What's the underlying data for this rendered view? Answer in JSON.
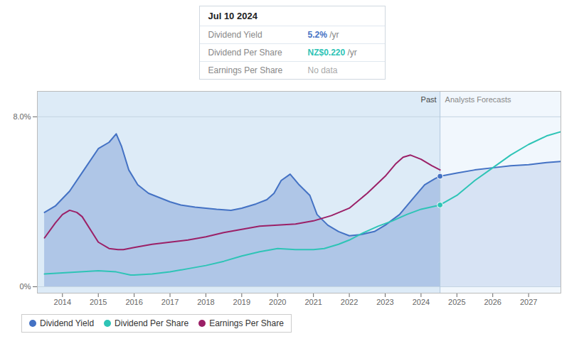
{
  "chart_data": {
    "type": "line",
    "xlim": [
      2013.3,
      2027.9
    ],
    "ylim": [
      -0.3,
      9.2
    ],
    "xticks": [
      2014,
      2015,
      2016,
      2017,
      2018,
      2019,
      2020,
      2021,
      2022,
      2023,
      2024,
      2025,
      2026,
      2027
    ],
    "yticks": [
      {
        "value": 0,
        "label": "0%"
      },
      {
        "value": 8.0,
        "label": "8.0%"
      }
    ],
    "grid": true,
    "legend": "lower left",
    "regions": [
      {
        "label": "Past",
        "from": 2013.3,
        "to": 2024.53,
        "color": "#cfe2f3"
      },
      {
        "label": "Analysts Forecasts",
        "from": 2024.53,
        "to": 2027.9,
        "color": "#e8f2fb"
      }
    ],
    "series": [
      {
        "name": "Dividend Yield",
        "color": "#4472c4",
        "type": "area",
        "x": [
          2013.5,
          2013.8,
          2014.2,
          2014.6,
          2015.0,
          2015.3,
          2015.5,
          2015.65,
          2015.85,
          2016.1,
          2016.4,
          2016.7,
          2017.0,
          2017.3,
          2017.7,
          2018.0,
          2018.3,
          2018.7,
          2019.0,
          2019.4,
          2019.7,
          2019.9,
          2020.1,
          2020.35,
          2020.6,
          2020.9,
          2021.1,
          2021.4,
          2021.7,
          2022.0,
          2022.3,
          2022.7,
          2023.0,
          2023.4,
          2023.8,
          2024.1,
          2024.4,
          2024.53
        ],
        "values": [
          3.5,
          3.8,
          4.5,
          5.5,
          6.5,
          6.8,
          7.2,
          6.6,
          5.5,
          4.8,
          4.4,
          4.2,
          4.0,
          3.85,
          3.75,
          3.7,
          3.65,
          3.6,
          3.7,
          3.9,
          4.1,
          4.4,
          5.0,
          5.3,
          4.8,
          4.3,
          3.4,
          2.9,
          2.6,
          2.4,
          2.45,
          2.6,
          2.9,
          3.4,
          4.2,
          4.8,
          5.1,
          5.2
        ],
        "forecast_x": [
          2024.53,
          2025.0,
          2025.5,
          2026.0,
          2026.5,
          2027.0,
          2027.5,
          2027.9
        ],
        "forecast_values": [
          5.2,
          5.35,
          5.5,
          5.6,
          5.7,
          5.75,
          5.85,
          5.9
        ]
      },
      {
        "name": "Dividend Per Share",
        "color": "#2ec4b6",
        "type": "line",
        "x": [
          2013.5,
          2014.0,
          2014.5,
          2015.0,
          2015.5,
          2015.9,
          2016.0,
          2016.5,
          2017.0,
          2017.5,
          2018.0,
          2018.5,
          2019.0,
          2019.5,
          2020.0,
          2020.5,
          2021.0,
          2021.3,
          2021.7,
          2022.0,
          2022.4,
          2022.8,
          2023.2,
          2023.6,
          2024.0,
          2024.4,
          2024.53
        ],
        "values": [
          0.6,
          0.65,
          0.7,
          0.75,
          0.7,
          0.55,
          0.55,
          0.6,
          0.7,
          0.85,
          1.0,
          1.2,
          1.45,
          1.65,
          1.8,
          1.75,
          1.75,
          1.8,
          2.0,
          2.2,
          2.55,
          2.85,
          3.1,
          3.4,
          3.65,
          3.8,
          3.85
        ],
        "forecast_x": [
          2024.53,
          2025.0,
          2025.5,
          2026.0,
          2026.5,
          2027.0,
          2027.5,
          2027.9
        ],
        "forecast_values": [
          3.85,
          4.3,
          5.0,
          5.6,
          6.2,
          6.7,
          7.1,
          7.3
        ]
      },
      {
        "name": "Earnings Per Share",
        "color": "#9b2067",
        "type": "line",
        "x": [
          2013.5,
          2013.8,
          2014.0,
          2014.2,
          2014.4,
          2014.55,
          2015.0,
          2015.3,
          2015.55,
          2015.7,
          2016.0,
          2016.5,
          2017.0,
          2017.5,
          2018.0,
          2018.5,
          2019.0,
          2019.5,
          2020.0,
          2020.5,
          2021.0,
          2021.5,
          2022.0,
          2022.5,
          2023.0,
          2023.3,
          2023.5,
          2023.7,
          2024.0,
          2024.3,
          2024.53
        ],
        "values": [
          2.3,
          3.0,
          3.4,
          3.6,
          3.5,
          3.3,
          2.1,
          1.8,
          1.75,
          1.75,
          1.85,
          2.0,
          2.1,
          2.2,
          2.35,
          2.55,
          2.7,
          2.85,
          2.9,
          2.95,
          3.1,
          3.35,
          3.7,
          4.4,
          5.2,
          5.8,
          6.1,
          6.2,
          6.0,
          5.7,
          5.5
        ]
      }
    ],
    "tooltip": {
      "title": "Jul 10 2024",
      "rows": [
        {
          "label": "Dividend Yield",
          "value": "5.2%",
          "unit": " /yr",
          "color": "#4472c4"
        },
        {
          "label": "Dividend Per Share",
          "value": "NZ$0.220",
          "unit": " /yr",
          "color": "#2ec4b6"
        },
        {
          "label": "Earnings Per Share",
          "value": "No data"
        }
      ]
    }
  }
}
